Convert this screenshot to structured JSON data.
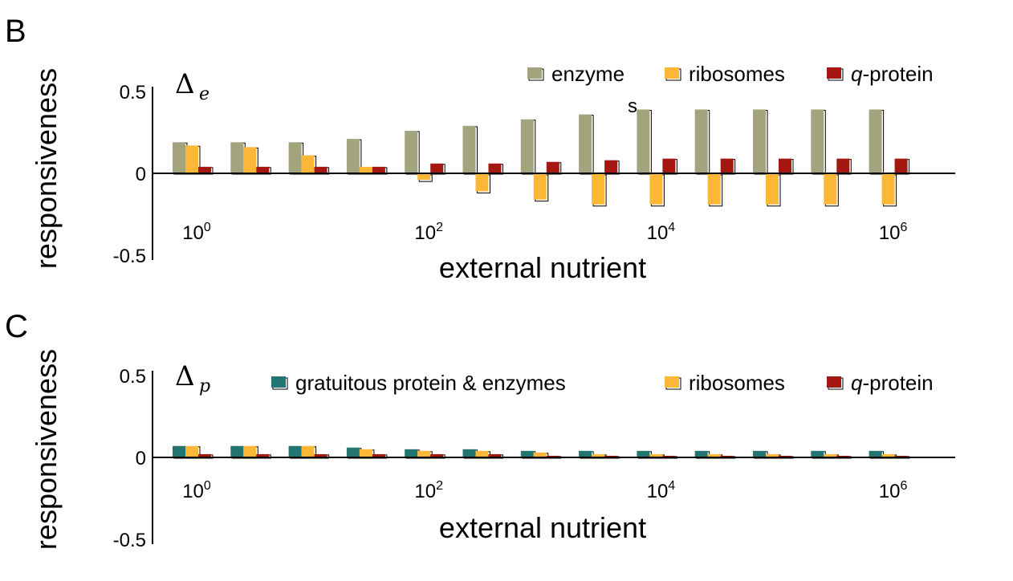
{
  "chart_data": [
    {
      "type": "bar",
      "panel_label": "B",
      "delta": {
        "symbol": "Δ",
        "subscript": "e"
      },
      "stray_text": "s",
      "ylabel": "responsiveness",
      "xlabel": "external nutrient",
      "x_scale": "log",
      "x": [
        1,
        3.16,
        10,
        31.6,
        100,
        316,
        1000,
        3160,
        10000,
        31600,
        100000,
        316000,
        1000000
      ],
      "xticks": [
        {
          "base": "10",
          "exp": "0",
          "value": 1
        },
        {
          "base": "10",
          "exp": "2",
          "value": 100
        },
        {
          "base": "10",
          "exp": "4",
          "value": 10000
        },
        {
          "base": "10",
          "exp": "6",
          "value": 1000000
        }
      ],
      "ylim": [
        -0.5,
        0.5
      ],
      "yticks": [
        "0.5",
        "0",
        "-0.5"
      ],
      "legend": [
        {
          "name": "enzyme",
          "italic_prefix": "",
          "suffix": "enzyme",
          "color": "#a3a47d"
        },
        {
          "name": "ribosomes",
          "italic_prefix": "",
          "suffix": "ribosomes",
          "color": "#fbb735"
        },
        {
          "name": "q-protein",
          "italic_prefix": "q",
          "suffix": "-protein",
          "color": "#a51812"
        }
      ],
      "series": [
        {
          "name": "enzyme",
          "color": "#a3a47d",
          "values": [
            0.19,
            0.19,
            0.19,
            0.21,
            0.26,
            0.29,
            0.33,
            0.36,
            0.39,
            0.39,
            0.39,
            0.39,
            0.39
          ]
        },
        {
          "name": "ribosomes",
          "color": "#fbb735",
          "values": [
            0.17,
            0.16,
            0.11,
            0.04,
            -0.04,
            -0.11,
            -0.16,
            -0.19,
            -0.19,
            -0.19,
            -0.19,
            -0.19,
            -0.19
          ]
        },
        {
          "name": "q-protein",
          "color": "#a51812",
          "values": [
            0.04,
            0.04,
            0.04,
            0.04,
            0.06,
            0.06,
            0.07,
            0.08,
            0.09,
            0.09,
            0.09,
            0.09,
            0.09
          ]
        }
      ]
    },
    {
      "type": "bar",
      "panel_label": "C",
      "delta": {
        "symbol": "Δ",
        "subscript": "p"
      },
      "ylabel": "responsiveness",
      "xlabel": "external nutrient",
      "x_scale": "log",
      "x": [
        1,
        3.16,
        10,
        31.6,
        100,
        316,
        1000,
        3160,
        10000,
        31600,
        100000,
        316000,
        1000000
      ],
      "xticks": [
        {
          "base": "10",
          "exp": "0",
          "value": 1
        },
        {
          "base": "10",
          "exp": "2",
          "value": 100
        },
        {
          "base": "10",
          "exp": "4",
          "value": 10000
        },
        {
          "base": "10",
          "exp": "6",
          "value": 1000000
        }
      ],
      "ylim": [
        -0.5,
        0.5
      ],
      "yticks": [
        "0.5",
        "0",
        "-0.5"
      ],
      "legend": [
        {
          "name": "gratuitous protein & enzymes",
          "italic_prefix": "",
          "suffix": "gratuitous protein & enzymes",
          "color": "#237571"
        },
        {
          "name": "ribosomes",
          "italic_prefix": "",
          "suffix": "ribosomes",
          "color": "#fbb735"
        },
        {
          "name": "q-protein",
          "italic_prefix": "q",
          "suffix": "-protein",
          "color": "#a51812"
        }
      ],
      "series": [
        {
          "name": "gratuitous protein & enzymes",
          "color": "#237571",
          "values": [
            0.07,
            0.07,
            0.07,
            0.06,
            0.05,
            0.05,
            0.04,
            0.04,
            0.04,
            0.04,
            0.04,
            0.04,
            0.04
          ]
        },
        {
          "name": "ribosomes",
          "color": "#fbb735",
          "values": [
            0.07,
            0.07,
            0.07,
            0.05,
            0.04,
            0.04,
            0.03,
            0.02,
            0.02,
            0.02,
            0.02,
            0.02,
            0.02
          ]
        },
        {
          "name": "q-protein",
          "color": "#a51812",
          "values": [
            0.02,
            0.02,
            0.02,
            0.02,
            0.02,
            0.02,
            0.01,
            0.01,
            0.01,
            0.01,
            0.01,
            0.01,
            0.01
          ]
        }
      ]
    }
  ]
}
